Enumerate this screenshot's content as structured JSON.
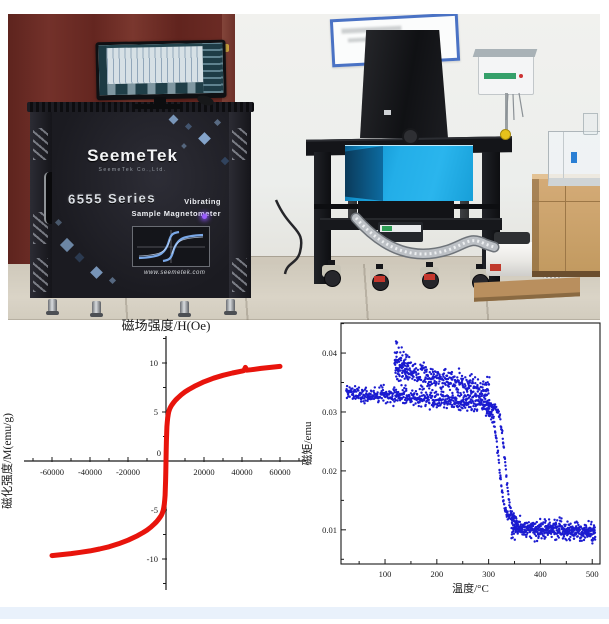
{
  "page": {
    "background": "#ffffff",
    "footer_color": "#e9f1fb"
  },
  "photo": {
    "cabinet": {
      "brand": "SeemeTek",
      "brand_sub": "SeemeTek Co.,Ltd.",
      "series": "6555 Series",
      "tagline1": "Vibrating",
      "tagline2": "Sample Magnetometer",
      "website": "www.seemetek.com"
    }
  },
  "chart_data": [
    {
      "id": "hysteresis-loop",
      "type": "line",
      "title": "磁场强度/H(Oe)",
      "xlabel": "",
      "ylabel": "磁化强度/M(emu/g)",
      "legend": [],
      "axis_style": "cross",
      "grid": false,
      "color": "#e8140c",
      "line_width": 5,
      "xlim": [
        -74000,
        73000
      ],
      "ylim": [
        -12.9,
        12.8
      ],
      "xticks": [
        -60000,
        -40000,
        -20000,
        0,
        20000,
        40000,
        60000
      ],
      "xticks_minor": [
        -70000,
        -50000,
        -30000,
        -10000,
        10000,
        30000,
        50000,
        70000
      ],
      "yticks": [
        -10,
        -5,
        0,
        5,
        10
      ],
      "yticks_minor": [
        -12.5,
        -7.5,
        -2.5,
        2.5,
        7.5,
        12.5
      ],
      "points": [
        [
          -60000,
          -9.65
        ],
        [
          -55000,
          -9.55
        ],
        [
          -50000,
          -9.45
        ],
        [
          -45000,
          -9.32
        ],
        [
          -40000,
          -9.17
        ],
        [
          -35000,
          -8.98
        ],
        [
          -30000,
          -8.75
        ],
        [
          -25000,
          -8.45
        ],
        [
          -20000,
          -8.08
        ],
        [
          -15000,
          -7.62
        ],
        [
          -12000,
          -7.3
        ],
        [
          -10000,
          -7.05
        ],
        [
          -8000,
          -6.75
        ],
        [
          -6000,
          -6.4
        ],
        [
          -5000,
          -6.2
        ],
        [
          -4000,
          -5.97
        ],
        [
          -3000,
          -5.7
        ],
        [
          -2500,
          -5.55
        ],
        [
          -2000,
          -5.35
        ],
        [
          -1500,
          -5.05
        ],
        [
          -1200,
          -4.8
        ],
        [
          -900,
          -4.4
        ],
        [
          -700,
          -4.0
        ],
        [
          -500,
          -3.5
        ],
        [
          -350,
          -2.9
        ],
        [
          -200,
          -2.0
        ],
        [
          -100,
          -1.1
        ],
        [
          0,
          0
        ],
        [
          100,
          1.1
        ],
        [
          200,
          2.0
        ],
        [
          350,
          2.9
        ],
        [
          500,
          3.5
        ],
        [
          700,
          4.0
        ],
        [
          900,
          4.4
        ],
        [
          1200,
          4.8
        ],
        [
          1500,
          5.05
        ],
        [
          2000,
          5.35
        ],
        [
          2500,
          5.55
        ],
        [
          3000,
          5.7
        ],
        [
          4000,
          5.97
        ],
        [
          5000,
          6.2
        ],
        [
          6000,
          6.4
        ],
        [
          8000,
          6.75
        ],
        [
          10000,
          7.05
        ],
        [
          12000,
          7.3
        ],
        [
          15000,
          7.62
        ],
        [
          20000,
          8.08
        ],
        [
          25000,
          8.45
        ],
        [
          30000,
          8.75
        ],
        [
          35000,
          8.98
        ],
        [
          40000,
          9.17
        ],
        [
          41000,
          9.22
        ],
        [
          41800,
          9.55
        ],
        [
          42600,
          9.27
        ],
        [
          45000,
          9.32
        ],
        [
          50000,
          9.45
        ],
        [
          55000,
          9.55
        ],
        [
          60000,
          9.65
        ]
      ]
    },
    {
      "id": "thermomagnetic-curve",
      "type": "scatter",
      "title": "",
      "xlabel": "温度/°C",
      "ylabel": "磁矩/emu",
      "legend": [],
      "axis_style": "box",
      "grid": false,
      "color": "#1b1bd0",
      "marker_size": 1.2,
      "xlim": [
        15,
        515
      ],
      "ylim": [
        0.0042,
        0.0451
      ],
      "xticks": [
        100,
        200,
        300,
        400,
        500
      ],
      "xticks_minor": [
        50,
        150,
        250,
        350,
        450
      ],
      "yticks": [
        0.01,
        0.02,
        0.03,
        0.04
      ],
      "yticks_minor": [
        0.005,
        0.015,
        0.025,
        0.035,
        0.045
      ],
      "seed": 11,
      "segments": [
        {
          "name": "lower-band",
          "mode": "linear",
          "t0": 25,
          "t1": 302,
          "m0": 0.0334,
          "m1": 0.0313,
          "noise": 0.0007,
          "n": 500
        },
        {
          "name": "upper-band",
          "mode": "linear",
          "t0": 119,
          "t1": 302,
          "m0": 0.0374,
          "m1": 0.0335,
          "noise": 0.001,
          "n": 340
        },
        {
          "name": "upper-start-cluster",
          "mode": "linear",
          "t0": 118,
          "t1": 145,
          "m0": 0.0392,
          "m1": 0.0376,
          "noise": 0.0014,
          "n": 50
        },
        {
          "name": "peak-points",
          "mode": "linear",
          "t0": 121,
          "t1": 124,
          "m0": 0.042,
          "m1": 0.0415,
          "noise": 0.0003,
          "n": 3
        },
        {
          "name": "drop-trace-heating",
          "mode": "sigmoid",
          "t0": 294,
          "t1": 348,
          "m0": 0.0305,
          "m1": 0.012,
          "tc": 320,
          "w": 5,
          "noise": 0.0004,
          "n": 90
        },
        {
          "name": "drop-trace-cooling",
          "mode": "sigmoid",
          "t0": 300,
          "t1": 356,
          "m0": 0.0312,
          "m1": 0.0112,
          "tc": 332,
          "w": 5,
          "noise": 0.0004,
          "n": 90
        },
        {
          "name": "tail",
          "mode": "linear",
          "t0": 344,
          "t1": 506,
          "m0": 0.0103,
          "m1": 0.0097,
          "noise": 0.0008,
          "n": 480
        }
      ]
    }
  ]
}
